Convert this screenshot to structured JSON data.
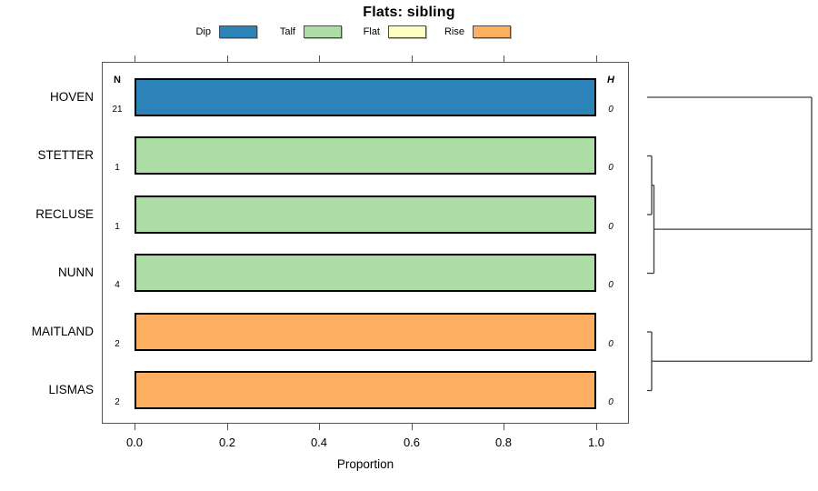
{
  "title": "Flats: sibling",
  "legend": [
    {
      "label": "Dip",
      "color": "#2B83BA"
    },
    {
      "label": "Talf",
      "color": "#ABDDA4"
    },
    {
      "label": "Flat",
      "color": "#FFFFBF"
    },
    {
      "label": "Rise",
      "color": "#FDAE61"
    }
  ],
  "columns": {
    "n_header": "N",
    "h_header": "H"
  },
  "x_axis": {
    "label": "Proportion",
    "ticks": [
      "0.0",
      "0.2",
      "0.4",
      "0.6",
      "0.8",
      "1.0"
    ]
  },
  "chart_data": {
    "type": "bar",
    "orientation": "horizontal",
    "title": "Flats: sibling",
    "xlabel": "Proportion",
    "xlim": [
      0,
      1
    ],
    "grid": false,
    "legend_position": "top",
    "categories": [
      "HOVEN",
      "STETTER",
      "RECLUSE",
      "NUNN",
      "MAITLAND",
      "LISMAS"
    ],
    "series": [
      {
        "name": "Dip",
        "color": "#2B83BA",
        "values": [
          1,
          0,
          0,
          0,
          0,
          0
        ]
      },
      {
        "name": "Talf",
        "color": "#ABDDA4",
        "values": [
          0,
          1,
          1,
          1,
          0,
          0
        ]
      },
      {
        "name": "Flat",
        "color": "#FFFFBF",
        "values": [
          0,
          0,
          0,
          0,
          0,
          0
        ]
      },
      {
        "name": "Rise",
        "color": "#FDAE61",
        "values": [
          0,
          0,
          0,
          0,
          1,
          1
        ]
      }
    ],
    "n_values": [
      21,
      1,
      1,
      4,
      2,
      2
    ],
    "h_values": [
      0,
      0,
      0,
      0,
      0,
      0
    ],
    "rows": [
      {
        "label": "HOVEN",
        "n": "21",
        "h": "0",
        "category": "Dip",
        "proportion": 1.0
      },
      {
        "label": "STETTER",
        "n": "1",
        "h": "0",
        "category": "Talf",
        "proportion": 1.0
      },
      {
        "label": "RECLUSE",
        "n": "1",
        "h": "0",
        "category": "Talf",
        "proportion": 1.0
      },
      {
        "label": "NUNN",
        "n": "4",
        "h": "0",
        "category": "Talf",
        "proportion": 1.0
      },
      {
        "label": "MAITLAND",
        "n": "2",
        "h": "0",
        "category": "Rise",
        "proportion": 1.0
      },
      {
        "label": "LISMAS",
        "n": "2",
        "h": "0",
        "category": "Rise",
        "proportion": 1.0
      }
    ],
    "dendrogram": {
      "side": "right",
      "leaf_order": [
        "HOVEN",
        "STETTER",
        "RECLUSE",
        "NUNN",
        "MAITLAND",
        "LISMAS"
      ],
      "structure": "((HOVEN,((STETTER,RECLUSE),NUNN)),(MAITLAND,LISMAS))",
      "merge_heights": [
        "STETTER+RECLUSE: near 0",
        "SR+NUNN: near 0",
        "MAITLAND+LISMAS: near 0",
        "root merges: max"
      ]
    }
  }
}
